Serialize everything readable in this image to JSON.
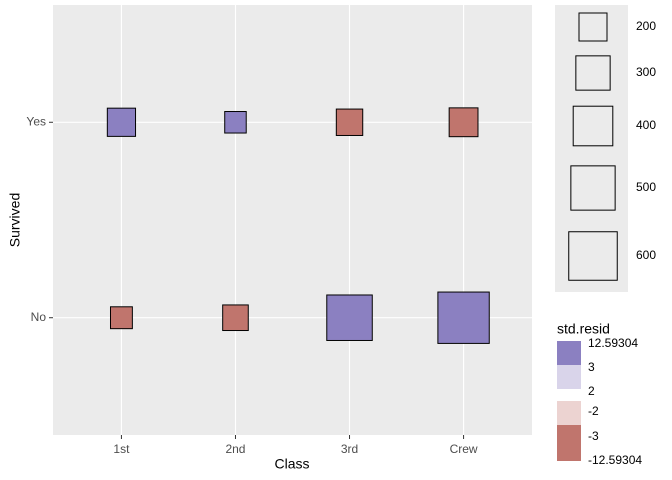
{
  "chart_data": {
    "type": "square",
    "x_label": "Class",
    "y_label": "Survived",
    "categories": [
      "1st",
      "2nd",
      "3rd",
      "Crew"
    ],
    "series": [
      {
        "name": "Yes",
        "values": [
          203,
          118,
          178,
          212
        ],
        "colors": [
          "#8b80c1",
          "#8b80c1",
          "#c0756d",
          "#c0756d"
        ]
      },
      {
        "name": "No",
        "values": [
          122,
          167,
          528,
          673
        ],
        "colors": [
          "#c0756d",
          "#c0756d",
          "#8b80c1",
          "#8b80c1"
        ]
      }
    ],
    "size_legend": {
      "values": [
        200,
        300,
        400,
        500,
        600
      ]
    },
    "color_legend": {
      "title": "std.resid",
      "breaks": [
        12.59304,
        3,
        2,
        -2,
        -3,
        -12.59304
      ],
      "colors": [
        "#8b80c1",
        "#d9d4ea",
        "#ecd3d1",
        "#c0756d"
      ]
    }
  }
}
